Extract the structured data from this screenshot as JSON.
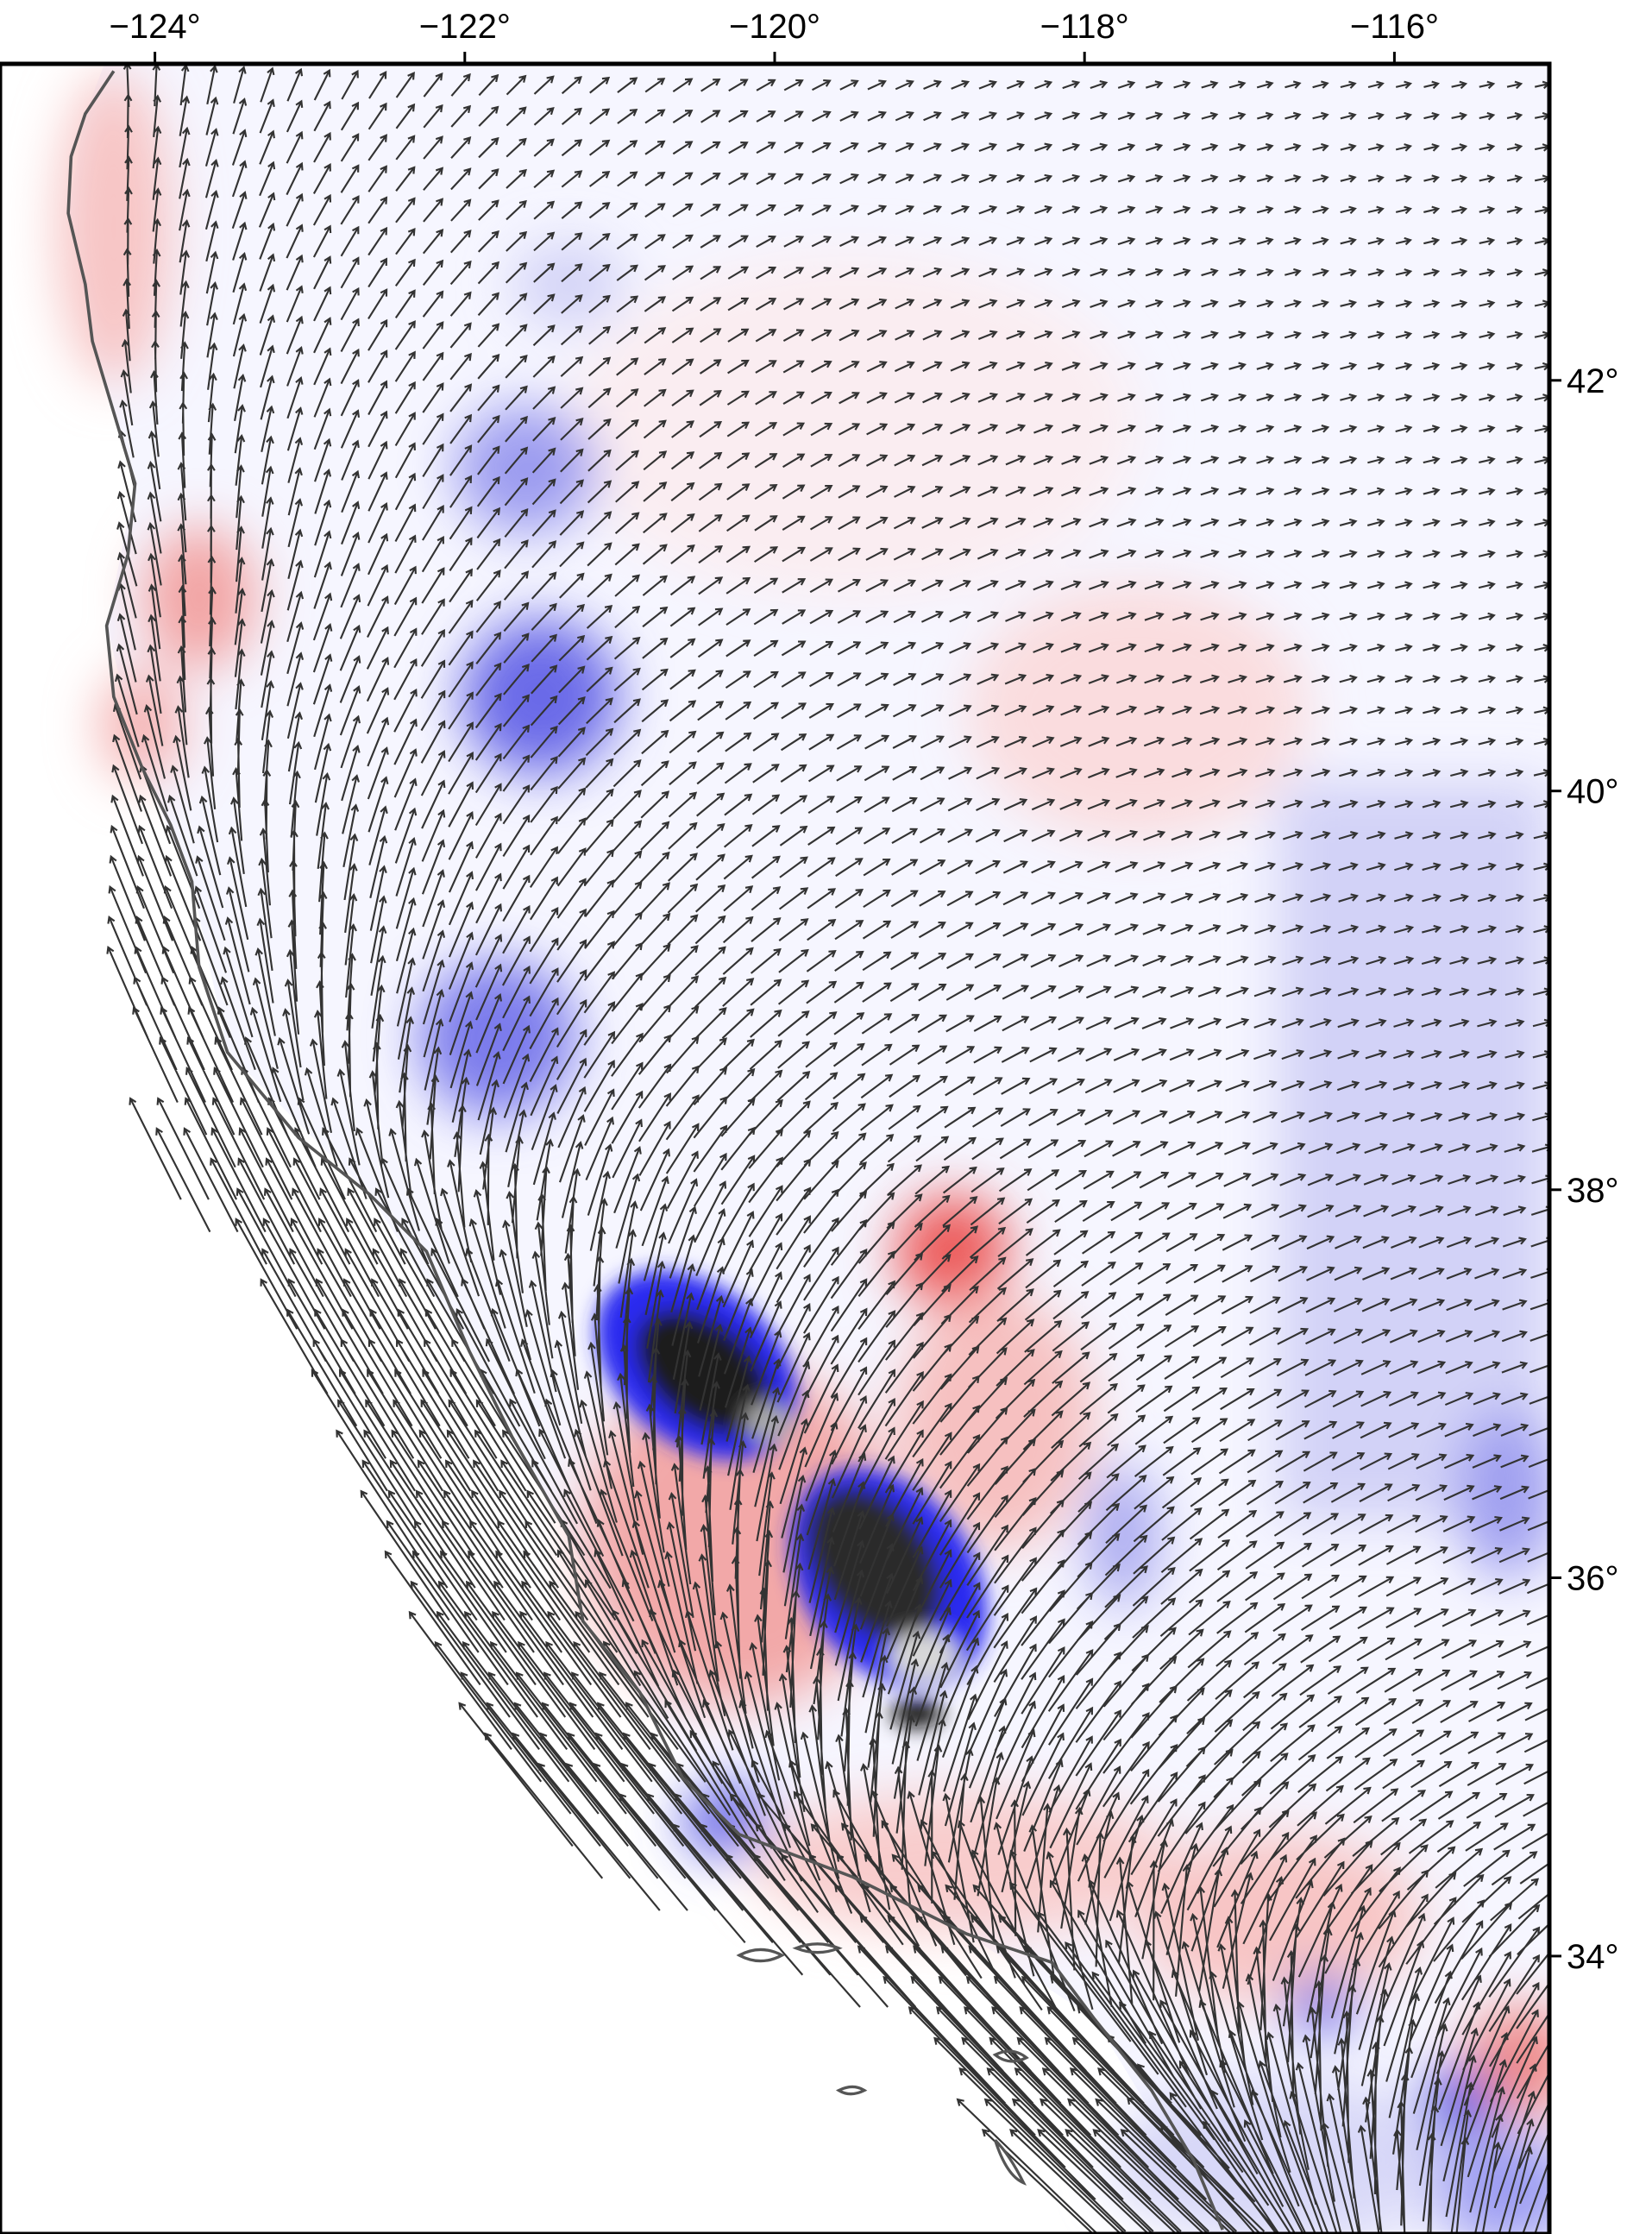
{
  "chart_data": {
    "type": "map",
    "xlim": [
      -125,
      -115
    ],
    "ylim": [
      32.5,
      43.5
    ],
    "xticks": [
      {
        "value": -124,
        "label": "−124°"
      },
      {
        "value": -122,
        "label": "−122°"
      },
      {
        "value": -120,
        "label": "−120°"
      },
      {
        "value": -118,
        "label": "−118°"
      },
      {
        "value": -116,
        "label": "−116°"
      }
    ],
    "yticks": [
      {
        "value": 42,
        "label": "42°"
      },
      {
        "value": 40,
        "label": "40°"
      },
      {
        "value": 38,
        "label": "38°"
      },
      {
        "value": 36,
        "label": "36°"
      },
      {
        "value": 34,
        "label": "34°"
      }
    ]
  }
}
